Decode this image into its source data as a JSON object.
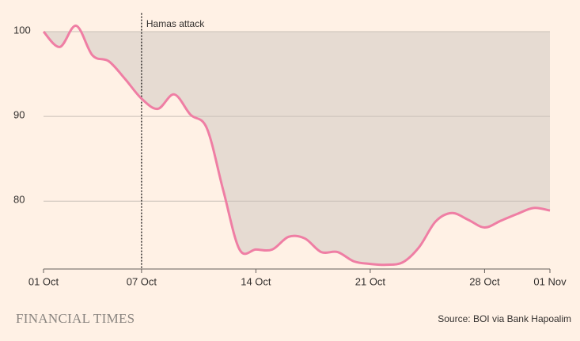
{
  "chart_data": {
    "type": "line",
    "categories": [
      "01 Oct",
      null,
      null,
      null,
      null,
      null,
      "07 Oct",
      null,
      null,
      null,
      null,
      null,
      null,
      "14 Oct",
      null,
      null,
      null,
      null,
      null,
      null,
      "21 Oct",
      null,
      null,
      null,
      null,
      null,
      null,
      "28 Oct",
      null,
      null,
      null,
      "01 Nov"
    ],
    "values": [
      100,
      98.2,
      100.7,
      97.2,
      96.5,
      94.4,
      92.1,
      90.9,
      92.6,
      90.2,
      88.6,
      81.3,
      74.3,
      74.3,
      74.3,
      75.8,
      75.6,
      74.0,
      74.0,
      72.9,
      72.6,
      72.5,
      72.8,
      74.6,
      77.6,
      78.6,
      77.8,
      76.9,
      77.7,
      78.5,
      79.2,
      78.9
    ],
    "color": "#ef7ea4",
    "area_color": "#e6dbd2",
    "area_baseline": 100,
    "ylim": [
      72,
      102
    ],
    "yticks": [
      80,
      90,
      100
    ],
    "grid": true,
    "annotations": [
      {
        "x": "07 Oct",
        "text": "Hamas attack"
      }
    ],
    "brand": "FINANCIAL TIMES",
    "source": "Source: BOI via Bank Hapoalim"
  }
}
